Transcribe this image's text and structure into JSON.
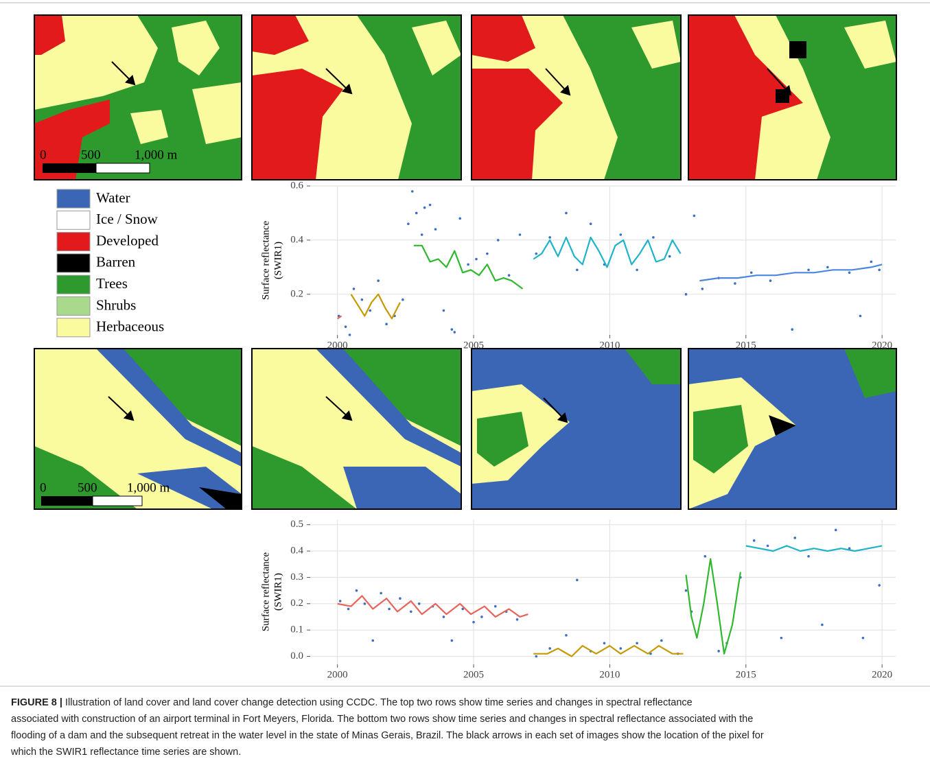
{
  "figure": {
    "legend": [
      "Water",
      "Ice / Snow",
      "Developed",
      "Barren",
      "Trees",
      "Shrubs",
      "Herbaceous"
    ],
    "legend_colors": [
      "#3a66b5",
      "#ffffff",
      "#e31a1c",
      "#000000",
      "#2e9a2e",
      "#a9d98a",
      "#fafa9e"
    ],
    "scale_top": [
      "0",
      "500",
      "1,000 m"
    ],
    "scale_bottom": [
      "0",
      "500",
      "1,000 m"
    ],
    "caption_label": "FIGURE 8 |",
    "caption": [
      "Illustration of land cover and land cover change detection using CCDC. The top two rows show time series and changes in spectral reflectance",
      "associated with construction of an airport terminal in Fort Meyers, Florida. The bottom two rows show time series and changes in spectral reflectance associated with the",
      "flooding of a dam and the subsequent retreat in the water level in the state of Minas Gerais, Brazil. The black arrows in each set of images show the location of the pixel for",
      "which the SWIR1 reflectance time series are shown."
    ]
  },
  "chart_data": [
    {
      "type": "line",
      "y_label": [
        "Surface reflectance",
        "(SWIR1)"
      ],
      "xlim": [
        1999,
        2020.5
      ],
      "ylim": [
        0.05,
        0.6
      ],
      "xticks": [
        2000,
        2005,
        2010,
        2015,
        2020
      ],
      "yticks": [
        0.2,
        0.4,
        0.6
      ],
      "grid": true,
      "series": [
        {
          "color": "#3a6fc4",
          "marker": "point",
          "x": [
            2000.05,
            2000.3,
            2000.45,
            2000.6,
            2000.9,
            2001.2,
            2001.5,
            2001.8,
            2002.1,
            2002.4,
            2002.6,
            2002.75,
            2002.9,
            2003.1,
            2003.2,
            2003.4,
            2003.6,
            2003.9,
            2004.2,
            2004.3,
            2004.5,
            2004.8,
            2005.1,
            2005.5,
            2005.9,
            2006.3,
            2006.7,
            2007.3,
            2007.8,
            2008.4,
            2008.8,
            2009.3,
            2009.8,
            2010.4,
            2011.0,
            2011.6,
            2012.2,
            2012.8,
            2013.1,
            2013.4,
            2014.0,
            2014.6,
            2015.2,
            2015.9,
            2016.7,
            2017.3,
            2018.0,
            2018.8,
            2019.2,
            2019.6,
            2019.9
          ],
          "values": [
            0.12,
            0.08,
            0.05,
            0.22,
            0.18,
            0.14,
            0.25,
            0.09,
            0.12,
            0.18,
            0.46,
            0.58,
            0.5,
            0.42,
            0.52,
            0.53,
            0.44,
            0.14,
            0.07,
            0.06,
            0.48,
            0.31,
            0.33,
            0.35,
            0.4,
            0.27,
            0.42,
            0.35,
            0.41,
            0.5,
            0.29,
            0.46,
            0.31,
            0.42,
            0.29,
            0.41,
            0.34,
            0.2,
            0.49,
            0.22,
            0.26,
            0.24,
            0.28,
            0.25,
            0.07,
            0.29,
            0.3,
            0.28,
            0.12,
            0.32,
            0.29
          ]
        },
        {
          "color": "#e8635a",
          "x": [
            2000.0,
            2000.15
          ],
          "values": [
            0.11,
            0.12
          ]
        },
        {
          "color": "#c49a00",
          "x": [
            2000.5,
            2000.75,
            2001.0,
            2001.25,
            2001.5,
            2001.75,
            2002.0,
            2002.3
          ],
          "values": [
            0.2,
            0.16,
            0.12,
            0.17,
            0.2,
            0.15,
            0.11,
            0.17
          ]
        },
        {
          "color": "#2eb82e",
          "x": [
            2002.8,
            2003.1,
            2003.4,
            2003.7,
            2004.0,
            2004.3,
            2004.6,
            2004.9,
            2005.2,
            2005.5,
            2005.8,
            2006.1,
            2006.4,
            2006.8
          ],
          "values": [
            0.38,
            0.38,
            0.32,
            0.33,
            0.3,
            0.36,
            0.28,
            0.29,
            0.27,
            0.31,
            0.25,
            0.26,
            0.25,
            0.22
          ]
        },
        {
          "color": "#1fb3c9",
          "x": [
            2007.2,
            2007.5,
            2007.8,
            2008.1,
            2008.4,
            2008.7,
            2009.0,
            2009.3,
            2009.6,
            2009.9,
            2010.2,
            2010.5,
            2010.8,
            2011.1,
            2011.4,
            2011.7,
            2012.0,
            2012.3,
            2012.6
          ],
          "values": [
            0.33,
            0.35,
            0.4,
            0.34,
            0.41,
            0.34,
            0.31,
            0.41,
            0.36,
            0.3,
            0.38,
            0.4,
            0.31,
            0.35,
            0.4,
            0.32,
            0.33,
            0.4,
            0.35
          ]
        },
        {
          "color": "#4a86e0",
          "x": [
            2013.3,
            2014.0,
            2014.7,
            2015.4,
            2016.1,
            2016.8,
            2017.5,
            2018.2,
            2018.9,
            2019.6,
            2020.0
          ],
          "values": [
            0.25,
            0.26,
            0.26,
            0.27,
            0.27,
            0.28,
            0.28,
            0.29,
            0.29,
            0.3,
            0.31
          ]
        }
      ]
    },
    {
      "type": "line",
      "y_label": [
        "Surface reflectance",
        "(SWIR1)"
      ],
      "xlim": [
        1999,
        2020.5
      ],
      "ylim": [
        -0.03,
        0.52
      ],
      "xticks": [
        2000,
        2005,
        2010,
        2015,
        2020
      ],
      "yticks": [
        {
          "value": 0,
          "label": "0.0"
        },
        0.1,
        0.2,
        0.3,
        0.4,
        0.5
      ],
      "grid": true,
      "series": [
        {
          "color": "#3a6fc4",
          "marker": "point",
          "x": [
            2000.1,
            2000.4,
            2000.7,
            2001.0,
            2001.3,
            2001.6,
            2001.9,
            2002.3,
            2002.7,
            2003.0,
            2003.5,
            2003.9,
            2004.2,
            2004.6,
            2005.0,
            2005.3,
            2005.8,
            2006.2,
            2006.6,
            2007.3,
            2007.8,
            2008.4,
            2008.8,
            2009.3,
            2009.8,
            2010.4,
            2011.0,
            2011.5,
            2011.9,
            2012.5,
            2012.8,
            2013.0,
            2013.5,
            2014.0,
            2014.3,
            2014.8,
            2015.3,
            2015.8,
            2016.3,
            2016.8,
            2017.3,
            2017.8,
            2018.3,
            2018.8,
            2019.3,
            2019.9
          ],
          "values": [
            0.21,
            0.18,
            0.25,
            0.2,
            0.06,
            0.24,
            0.18,
            0.22,
            0.17,
            0.2,
            0.19,
            0.15,
            0.06,
            0.18,
            0.13,
            0.15,
            0.19,
            0.17,
            0.14,
            0.0,
            0.03,
            0.08,
            0.29,
            0.02,
            0.05,
            0.03,
            0.05,
            0.01,
            0.06,
            0.01,
            0.25,
            0.17,
            0.38,
            0.02,
            0.05,
            0.3,
            0.44,
            0.42,
            0.07,
            0.45,
            0.38,
            0.12,
            0.48,
            0.41,
            0.07,
            0.27
          ]
        },
        {
          "color": "#e8635a",
          "x": [
            2000.0,
            2000.5,
            2000.9,
            2001.3,
            2001.8,
            2002.2,
            2002.7,
            2003.1,
            2003.6,
            2004.0,
            2004.5,
            2004.9,
            2005.4,
            2005.8,
            2006.3,
            2006.7,
            2007.0
          ],
          "values": [
            0.2,
            0.19,
            0.23,
            0.18,
            0.22,
            0.17,
            0.21,
            0.16,
            0.2,
            0.16,
            0.2,
            0.16,
            0.19,
            0.15,
            0.18,
            0.15,
            0.16
          ]
        },
        {
          "color": "#c49a00",
          "x": [
            2007.2,
            2007.7,
            2008.1,
            2008.6,
            2009.0,
            2009.5,
            2010.0,
            2010.4,
            2010.9,
            2011.4,
            2011.8,
            2012.3,
            2012.7
          ],
          "values": [
            0.01,
            0.01,
            0.03,
            0.0,
            0.04,
            0.01,
            0.04,
            0.01,
            0.04,
            0.01,
            0.04,
            0.01,
            0.01
          ]
        },
        {
          "color": "#2eb82e",
          "x": [
            2012.8,
            2013.0,
            2013.2,
            2013.45,
            2013.7,
            2013.95,
            2014.2,
            2014.5,
            2014.8
          ],
          "values": [
            0.31,
            0.15,
            0.07,
            0.2,
            0.37,
            0.2,
            0.01,
            0.12,
            0.32
          ]
        },
        {
          "color": "#1fb3c9",
          "x": [
            2015.0,
            2015.5,
            2016.0,
            2016.5,
            2017.0,
            2017.5,
            2018.0,
            2018.5,
            2019.0,
            2019.5,
            2020.0
          ],
          "values": [
            0.42,
            0.41,
            0.4,
            0.42,
            0.4,
            0.41,
            0.4,
            0.41,
            0.4,
            0.41,
            0.42
          ]
        }
      ]
    }
  ]
}
